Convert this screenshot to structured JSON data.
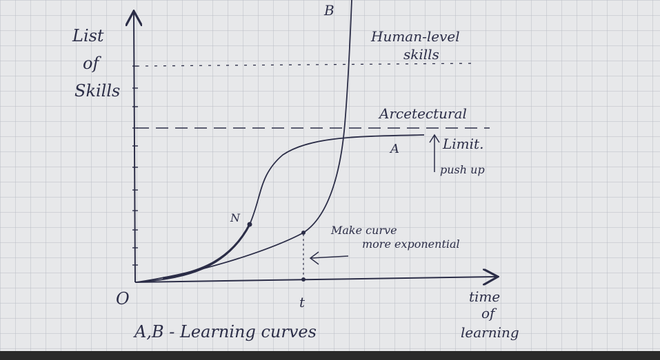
{
  "colors": {
    "paper": "#e7e8ea",
    "grid": "#b9bcc4",
    "ink": "#2b2d47",
    "backdrop": "#2a2a2a"
  },
  "labels": {
    "y_axis": [
      "List",
      "of",
      "Skills"
    ],
    "x_axis": [
      "time",
      "of",
      "learning"
    ],
    "origin": "O",
    "t_mark": "t",
    "curve_a": "A",
    "curve_b": "B",
    "point_n": "N",
    "human_level": [
      "Human-level",
      "skills"
    ],
    "arch_limit": [
      "Arcetectural",
      "Limit."
    ],
    "push_up": "push up",
    "make_curve": [
      "Make curve",
      "more exponential"
    ],
    "caption": "A,B - Learning curves"
  }
}
